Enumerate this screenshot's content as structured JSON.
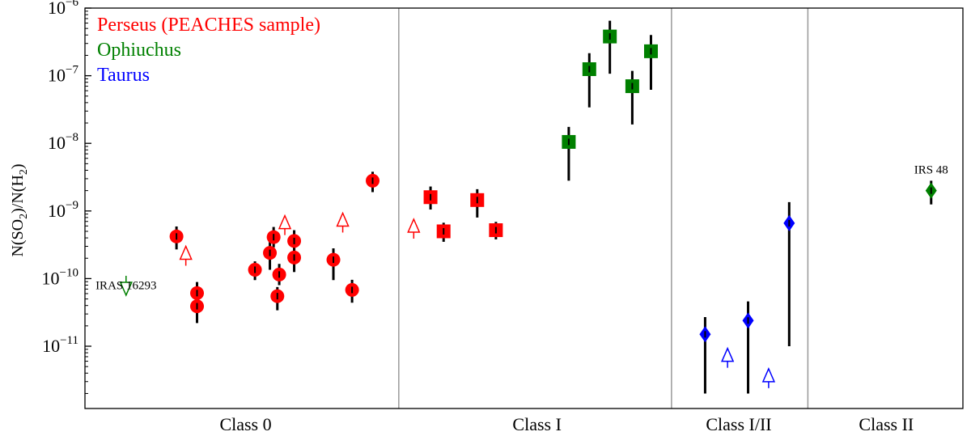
{
  "chart_data": {
    "type": "scatter",
    "title": "",
    "xlabel": "",
    "ylabel": "N(SO2)/N(H2)",
    "y_scale": "log",
    "ylim": [
      1.2e-12,
      1e-06
    ],
    "y_ticks": [
      {
        "value": 1e-11,
        "label_base": "10",
        "label_exp": "−11"
      },
      {
        "value": 1e-10,
        "label_base": "10",
        "label_exp": "−10"
      },
      {
        "value": 1e-09,
        "label_base": "10",
        "label_exp": "−9"
      },
      {
        "value": 1e-08,
        "label_base": "10",
        "label_exp": "−8"
      },
      {
        "value": 1e-07,
        "label_base": "10",
        "label_exp": "−7"
      },
      {
        "value": 1e-06,
        "label_base": "10",
        "label_exp": "−6"
      }
    ],
    "ylabel_parts": {
      "n1": "N(SO",
      "sub1": "2",
      "mid": ")/N(H",
      "sub2": "2",
      "end": ")"
    },
    "xlim": [
      0,
      47
    ],
    "grid": false,
    "legend_position": "top-left",
    "legend": [
      {
        "label": "Perseus (PEACHES sample)",
        "color": "#ff0000"
      },
      {
        "label": "Ophiuchus",
        "color": "#008000"
      },
      {
        "label": "Taurus",
        "color": "#0000ff"
      }
    ],
    "dividers": [
      16.8,
      31.4,
      38.7
    ],
    "class_labels": [
      {
        "label": "Class 0",
        "x": 8.6
      },
      {
        "label": "Class I",
        "x": 24.2
      },
      {
        "label": "Class I/II",
        "x": 35.0
      },
      {
        "label": "Class II",
        "x": 42.9
      }
    ],
    "annotations": [
      {
        "text": "IRAS 16293",
        "x": 2.2,
        "y": 7e-11
      },
      {
        "text": "IRS 48",
        "x": 45.3,
        "y": 3.6e-09
      }
    ],
    "series": [
      {
        "name": "Perseus (PEACHES sample)",
        "marker": "circle",
        "color": "#ff0000",
        "points": [
          {
            "x": 4.9,
            "y": 4.2e-10,
            "ylo": 2.7e-10,
            "yhi": 5.9e-10
          },
          {
            "x": 6.0,
            "y": 6.1e-11,
            "ylo": 4.3e-11,
            "yhi": 8.9e-11
          },
          {
            "x": 6.0,
            "y": 3.9e-11,
            "ylo": 2.2e-11,
            "yhi": 5.6e-11
          },
          {
            "x": 9.1,
            "y": 1.35e-10,
            "ylo": 9.5e-11,
            "yhi": 1.8e-10
          },
          {
            "x": 9.9,
            "y": 2.4e-10,
            "ylo": 1.35e-10,
            "yhi": 3.9e-10
          },
          {
            "x": 10.1,
            "y": 4.1e-10,
            "ylo": 2.9e-10,
            "yhi": 5.8e-10
          },
          {
            "x": 10.3,
            "y": 5.5e-11,
            "ylo": 3.4e-11,
            "yhi": 7.5e-11
          },
          {
            "x": 10.4,
            "y": 1.15e-10,
            "ylo": 8e-11,
            "yhi": 1.65e-10
          },
          {
            "x": 11.2,
            "y": 3.6e-10,
            "ylo": 2.4e-10,
            "yhi": 5.2e-10
          },
          {
            "x": 11.2,
            "y": 2.05e-10,
            "ylo": 1.25e-10,
            "yhi": 2.9e-10
          },
          {
            "x": 13.3,
            "y": 1.9e-10,
            "ylo": 9.5e-11,
            "yhi": 2.8e-10
          },
          {
            "x": 14.3,
            "y": 6.8e-11,
            "ylo": 4.4e-11,
            "yhi": 9.6e-11
          },
          {
            "x": 15.4,
            "y": 2.8e-09,
            "ylo": 1.9e-09,
            "yhi": 3.8e-09
          }
        ]
      },
      {
        "name": "Perseus (PEACHES sample)",
        "marker": "square",
        "color": "#ff0000",
        "points": [
          {
            "x": 18.5,
            "y": 1.6e-09,
            "ylo": 1.05e-09,
            "yhi": 2.3e-09
          },
          {
            "x": 19.2,
            "y": 5e-10,
            "ylo": 3.5e-10,
            "yhi": 6.7e-10
          },
          {
            "x": 21.0,
            "y": 1.45e-09,
            "ylo": 8e-10,
            "yhi": 2.1e-09
          },
          {
            "x": 22.0,
            "y": 5.2e-10,
            "ylo": 3.8e-10,
            "yhi": 6.9e-10
          }
        ]
      },
      {
        "name": "Ophiuchus",
        "marker": "square",
        "color": "#008000",
        "points": [
          {
            "x": 25.9,
            "y": 1.05e-08,
            "ylo": 2.8e-09,
            "yhi": 1.75e-08
          },
          {
            "x": 27.0,
            "y": 1.25e-07,
            "ylo": 3.4e-08,
            "yhi": 2.15e-07
          },
          {
            "x": 28.1,
            "y": 3.8e-07,
            "ylo": 1.07e-07,
            "yhi": 6.5e-07
          },
          {
            "x": 29.3,
            "y": 7e-08,
            "ylo": 1.9e-08,
            "yhi": 1.18e-07
          },
          {
            "x": 30.3,
            "y": 2.3e-07,
            "ylo": 6.2e-08,
            "yhi": 4e-07
          }
        ]
      },
      {
        "name": "Ophiuchus",
        "marker": "diamond",
        "color": "#008000",
        "points": [
          {
            "x": 45.3,
            "y": 2e-09,
            "ylo": 1.25e-09,
            "yhi": 2.8e-09
          }
        ]
      },
      {
        "name": "Taurus",
        "marker": "diamond",
        "color": "#0000ff",
        "points": [
          {
            "x": 33.2,
            "y": 1.5e-11,
            "ylo": 2e-12,
            "yhi": 2.7e-11
          },
          {
            "x": 35.5,
            "y": 2.4e-11,
            "ylo": 2e-12,
            "yhi": 4.6e-11
          },
          {
            "x": 37.7,
            "y": 6.6e-10,
            "ylo": 1e-11,
            "yhi": 1.35e-09
          }
        ]
      }
    ],
    "limits": [
      {
        "type": "upper",
        "x": 2.2,
        "y": 1.1e-10,
        "color": "#008000"
      },
      {
        "type": "lower",
        "x": 5.4,
        "y": 1.55e-10,
        "color": "#ff0000"
      },
      {
        "type": "lower",
        "x": 10.7,
        "y": 4.4e-10,
        "color": "#ff0000"
      },
      {
        "type": "lower",
        "x": 13.8,
        "y": 4.8e-10,
        "color": "#ff0000"
      },
      {
        "type": "lower",
        "x": 17.6,
        "y": 3.9e-10,
        "color": "#ff0000"
      },
      {
        "type": "lower",
        "x": 34.4,
        "y": 4.8e-12,
        "color": "#0000ff"
      },
      {
        "type": "lower",
        "x": 36.6,
        "y": 2.4e-12,
        "color": "#0000ff"
      }
    ]
  }
}
